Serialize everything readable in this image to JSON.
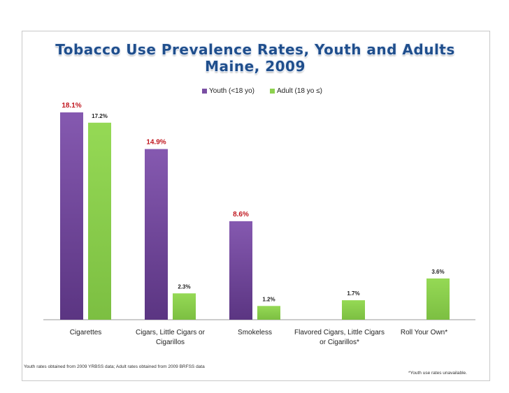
{
  "chart_data": {
    "type": "bar",
    "title_line1": "Tobacco Use Prevalence Rates, Youth and Adults",
    "title_line2": "Maine, 2009",
    "categories": [
      "Cigarettes",
      "Cigars, Little Cigars or Cigarillos",
      "Smokeless",
      "Flavored Cigars, Little Cigars or Cigarillos*",
      "Roll Your Own*"
    ],
    "category_lines": [
      [
        "Cigarettes"
      ],
      [
        "Cigars, Little Cigars or",
        "Cigarillos"
      ],
      [
        "Smokeless"
      ],
      [
        "Flavored Cigars, Little Cigars",
        "or Cigarillos*"
      ],
      [
        "Roll Your Own*"
      ]
    ],
    "series": [
      {
        "name": "Youth (<18 yo)",
        "color": "#7a4fa3",
        "label_color": "#c0161e",
        "label_size": 10,
        "values": [
          18.1,
          14.9,
          8.6,
          null,
          null
        ],
        "labels": [
          "18.1%",
          "14.9%",
          "8.6%",
          "",
          ""
        ]
      },
      {
        "name": "Adult (18 yo ≤)",
        "color": "#8dd14f",
        "label_color": "#222222",
        "label_size": 8,
        "values": [
          17.2,
          2.3,
          1.2,
          1.7,
          3.6
        ],
        "labels": [
          "17.2%",
          "2.3%",
          "1.2%",
          "1.7%",
          "3.6%"
        ]
      }
    ],
    "ylim": [
      0,
      18.1
    ],
    "legend_position": "top-right",
    "grid": false
  },
  "footnotes": {
    "source": "Youth rates obtained from 2009 YRBSS data; Adult rates obtained from 2009 BRFSS data",
    "note": "*Youth use rates unavailable."
  }
}
